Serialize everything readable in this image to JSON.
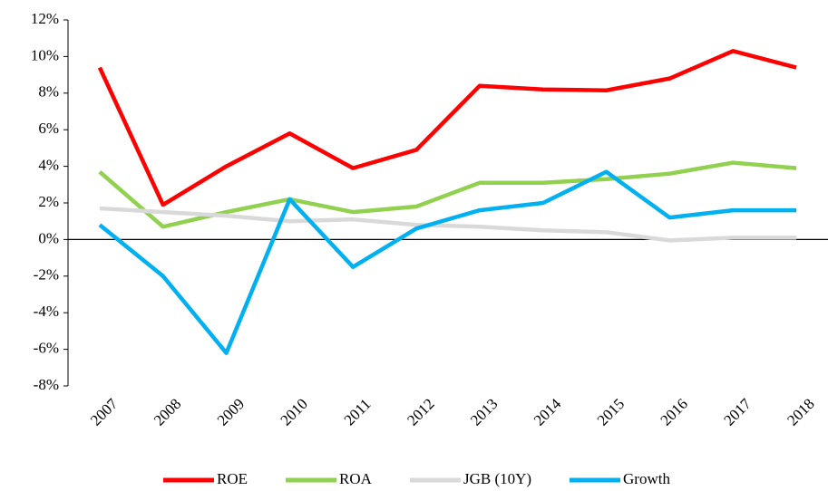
{
  "chart_data": {
    "type": "line",
    "categories": [
      "2007",
      "2008",
      "2009",
      "2010",
      "2011",
      "2012",
      "2013",
      "2014",
      "2015",
      "2016",
      "2017",
      "2018"
    ],
    "series": [
      {
        "name": "ROE",
        "color": "#ff0000",
        "values": [
          9.4,
          1.9,
          4.0,
          5.8,
          3.9,
          4.9,
          8.4,
          8.2,
          8.15,
          8.8,
          10.3,
          9.4
        ]
      },
      {
        "name": "ROA",
        "color": "#92d050",
        "values": [
          3.7,
          0.7,
          1.5,
          2.2,
          1.5,
          1.8,
          3.1,
          3.1,
          3.3,
          3.6,
          4.2,
          3.9
        ]
      },
      {
        "name": "JGB (10Y)",
        "color": "#d9d9d9",
        "values": [
          1.7,
          1.5,
          1.3,
          1.0,
          1.1,
          0.8,
          0.7,
          0.5,
          0.4,
          -0.05,
          0.1,
          0.1
        ]
      },
      {
        "name": "Growth",
        "color": "#00b0f0",
        "values": [
          0.8,
          -2.0,
          -6.2,
          2.2,
          -1.5,
          0.6,
          1.6,
          2.0,
          3.7,
          1.2,
          1.6,
          1.6
        ]
      }
    ],
    "ylim": [
      -8,
      12
    ],
    "yticks": [
      {
        "value": -8,
        "label": "-8%"
      },
      {
        "value": -6,
        "label": "-6%"
      },
      {
        "value": -4,
        "label": "-4%"
      },
      {
        "value": -2,
        "label": "-2%"
      },
      {
        "value": 0,
        "label": "0%"
      },
      {
        "value": 2,
        "label": "2%"
      },
      {
        "value": 4,
        "label": "4%"
      },
      {
        "value": 6,
        "label": "6%"
      },
      {
        "value": 8,
        "label": "8%"
      },
      {
        "value": 10,
        "label": "10%"
      },
      {
        "value": 12,
        "label": "12%"
      }
    ],
    "grid": false,
    "legend": "bottom"
  }
}
